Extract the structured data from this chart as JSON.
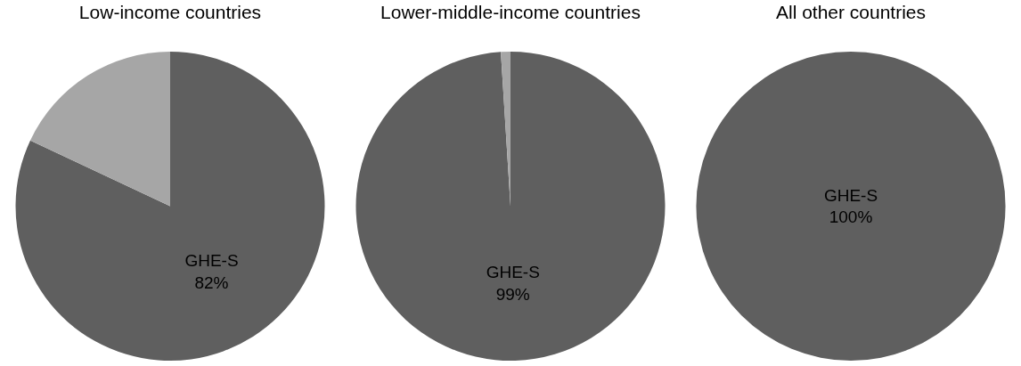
{
  "chart_data": [
    {
      "type": "pie",
      "title": "Low-income countries",
      "categories": [
        "GHE-S",
        null
      ],
      "values": [
        82,
        18
      ],
      "value_labels": [
        "82%",
        null
      ],
      "colors": [
        "#5f5f5f",
        "#a6a6a6"
      ],
      "legend": false
    },
    {
      "type": "pie",
      "title": "Lower-middle-income countries",
      "categories": [
        "GHE-S",
        null
      ],
      "values": [
        99,
        1
      ],
      "value_labels": [
        "99%",
        null
      ],
      "colors": [
        "#5f5f5f",
        "#a6a6a6"
      ],
      "legend": false
    },
    {
      "type": "pie",
      "title": "All other countries",
      "categories": [
        "GHE-S"
      ],
      "values": [
        100
      ],
      "value_labels": [
        "100%"
      ],
      "colors": [
        "#5f5f5f"
      ],
      "legend": false
    }
  ]
}
